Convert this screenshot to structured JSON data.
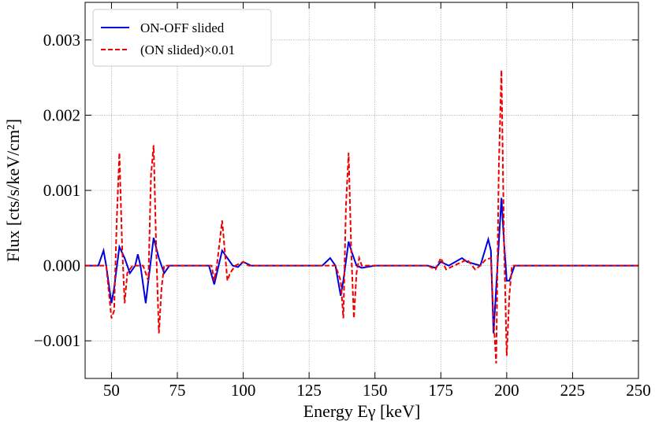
{
  "chart_data": {
    "type": "line",
    "x_label": "Energy Eγ [keV]",
    "y_label": "Flux [cts/s/keV/cm²]",
    "xlim": [
      40,
      250
    ],
    "xticks": [
      50,
      75,
      100,
      125,
      150,
      175,
      200,
      225,
      250
    ],
    "ylim": [
      -0.0015,
      0.0035
    ],
    "yticks": [
      {
        "value": -0.001,
        "label": "−0.001"
      },
      {
        "value": 0,
        "label": "0.000"
      },
      0.001,
      0.002,
      0.003
    ],
    "grid": true,
    "legend": "upper left",
    "series": [
      {
        "name": "ON-OFF slided",
        "color": "#0000dd",
        "style": "solid",
        "x": [
          40,
          45,
          47,
          48,
          50,
          51,
          53,
          55,
          57,
          59,
          60,
          61,
          63,
          64,
          66,
          68,
          70,
          72,
          80,
          87,
          89,
          90,
          92,
          94,
          96,
          98,
          100,
          103,
          130,
          133,
          135,
          137,
          138,
          140,
          141,
          143,
          145,
          150,
          170,
          173,
          175,
          178,
          183,
          185,
          190,
          193,
          194,
          195,
          196,
          198,
          199,
          200,
          201,
          203,
          250
        ],
        "values": [
          0,
          0,
          0.0002,
          0,
          -0.0005,
          -0.0003,
          0.00025,
          0.0001,
          -0.0001,
          0,
          0.00015,
          0,
          -0.0005,
          -0.0002,
          0.00037,
          0.0001,
          -0.0001,
          0,
          0,
          0,
          -0.00025,
          -0.0001,
          0.0002,
          0.0001,
          0,
          -2e-05,
          5e-05,
          0,
          0,
          0.0001,
          0,
          -0.0004,
          -0.0002,
          0.00032,
          0.0002,
          0,
          -3e-05,
          0,
          0,
          -3e-05,
          5e-05,
          0,
          0.0001,
          5e-05,
          0,
          0.00035,
          0.0002,
          -0.0009,
          -0.0003,
          0.0009,
          0.0003,
          -0.0002,
          -0.0002,
          0,
          0
        ]
      },
      {
        "name": "(ON slided)×0.01",
        "color": "#ee0000",
        "style": "dashed",
        "x": [
          40,
          48,
          50,
          51,
          52,
          53,
          54,
          55,
          56,
          58,
          62,
          64,
          65,
          66,
          67,
          68,
          69,
          70,
          88,
          89,
          90,
          91,
          92,
          93,
          94,
          95,
          97,
          100,
          102,
          135,
          137,
          138,
          139,
          140,
          141,
          142,
          143,
          144,
          145,
          170,
          173,
          175,
          177,
          180,
          185,
          188,
          190,
          192,
          194,
          195,
          196,
          197,
          198,
          199,
          200,
          201,
          202,
          250
        ],
        "values": [
          0,
          0,
          -0.0007,
          -0.0006,
          0.0006,
          0.0015,
          0.0003,
          -0.0005,
          -0.0001,
          0,
          0,
          -0.0002,
          0.0012,
          0.0016,
          0.0002,
          -0.0009,
          -0.0003,
          0,
          0,
          -0.0002,
          0,
          0.0003,
          0.0006,
          0.0002,
          -0.0002,
          -0.0001,
          0,
          5e-05,
          0,
          0,
          -0.0002,
          -0.0007,
          0.0008,
          0.0015,
          0.0002,
          -0.0007,
          -0.0001,
          0.0001,
          0,
          0,
          -5e-05,
          0.0001,
          -5e-05,
          0,
          8e-05,
          -5e-05,
          0,
          8e-05,
          0.0001,
          -0.0007,
          -0.0013,
          0.0013,
          0.0026,
          0.0003,
          -0.0012,
          -0.0004,
          0,
          0
        ]
      }
    ]
  }
}
